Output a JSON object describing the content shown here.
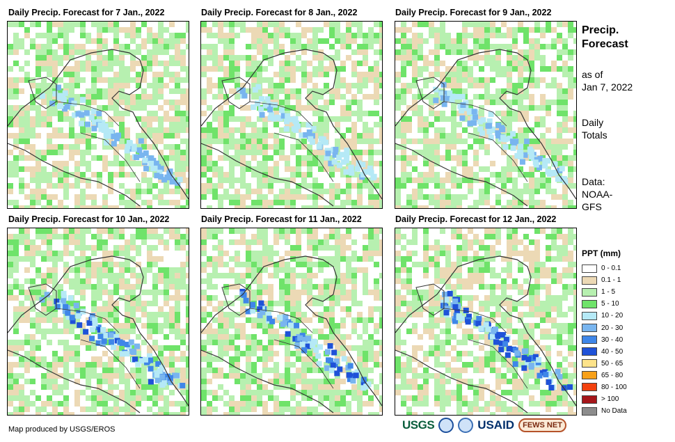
{
  "panels": [
    {
      "title": "Daily Precip. Forecast for 7 Jan., 2022",
      "day": 7,
      "intensity": 0.35
    },
    {
      "title": "Daily Precip. Forecast for 8 Jan., 2022",
      "day": 8,
      "intensity": 0.25
    },
    {
      "title": "Daily Precip. Forecast for 9 Jan., 2022",
      "day": 9,
      "intensity": 0.3
    },
    {
      "title": "Daily Precip. Forecast for 10 Jan., 2022",
      "day": 10,
      "intensity": 0.55
    },
    {
      "title": "Daily Precip. Forecast for 11 Jan., 2022",
      "day": 11,
      "intensity": 0.7
    },
    {
      "title": "Daily Precip. Forecast for 12 Jan., 2022",
      "day": 12,
      "intensity": 0.75
    }
  ],
  "side": {
    "title_line1": "Precip.",
    "title_line2": "Forecast",
    "asof_line1": "as of",
    "asof_line2": "Jan 7, 2022",
    "totals_line1": "Daily",
    "totals_line2": "Totals",
    "data_line1": "Data:",
    "data_line2": "NOAA-",
    "data_line3": "GFS"
  },
  "legend": {
    "title": "PPT (mm)",
    "items": [
      {
        "label": "0 - 0.1",
        "color": "#ffffff"
      },
      {
        "label": "0.1 - 1",
        "color": "#ecd9b5"
      },
      {
        "label": "1 - 5",
        "color": "#b7f0b0"
      },
      {
        "label": "5 - 10",
        "color": "#6fe36a"
      },
      {
        "label": "10 - 20",
        "color": "#b5e9f6"
      },
      {
        "label": "20 - 30",
        "color": "#79b5ef"
      },
      {
        "label": "30 - 40",
        "color": "#3f86e8"
      },
      {
        "label": "40 - 50",
        "color": "#1f52d8"
      },
      {
        "label": "50 - 65",
        "color": "#fde38a"
      },
      {
        "label": "65 - 80",
        "color": "#f7a019"
      },
      {
        "label": "80 - 100",
        "color": "#f2410e"
      },
      {
        "label": "> 100",
        "color": "#a5161a"
      },
      {
        "label": "No Data",
        "color": "#8c8c8c"
      }
    ]
  },
  "credit": "Map produced by USGS/EROS",
  "logos": {
    "usgs": "USGS",
    "usaid": "USAID",
    "fews": "FEWS NET"
  }
}
